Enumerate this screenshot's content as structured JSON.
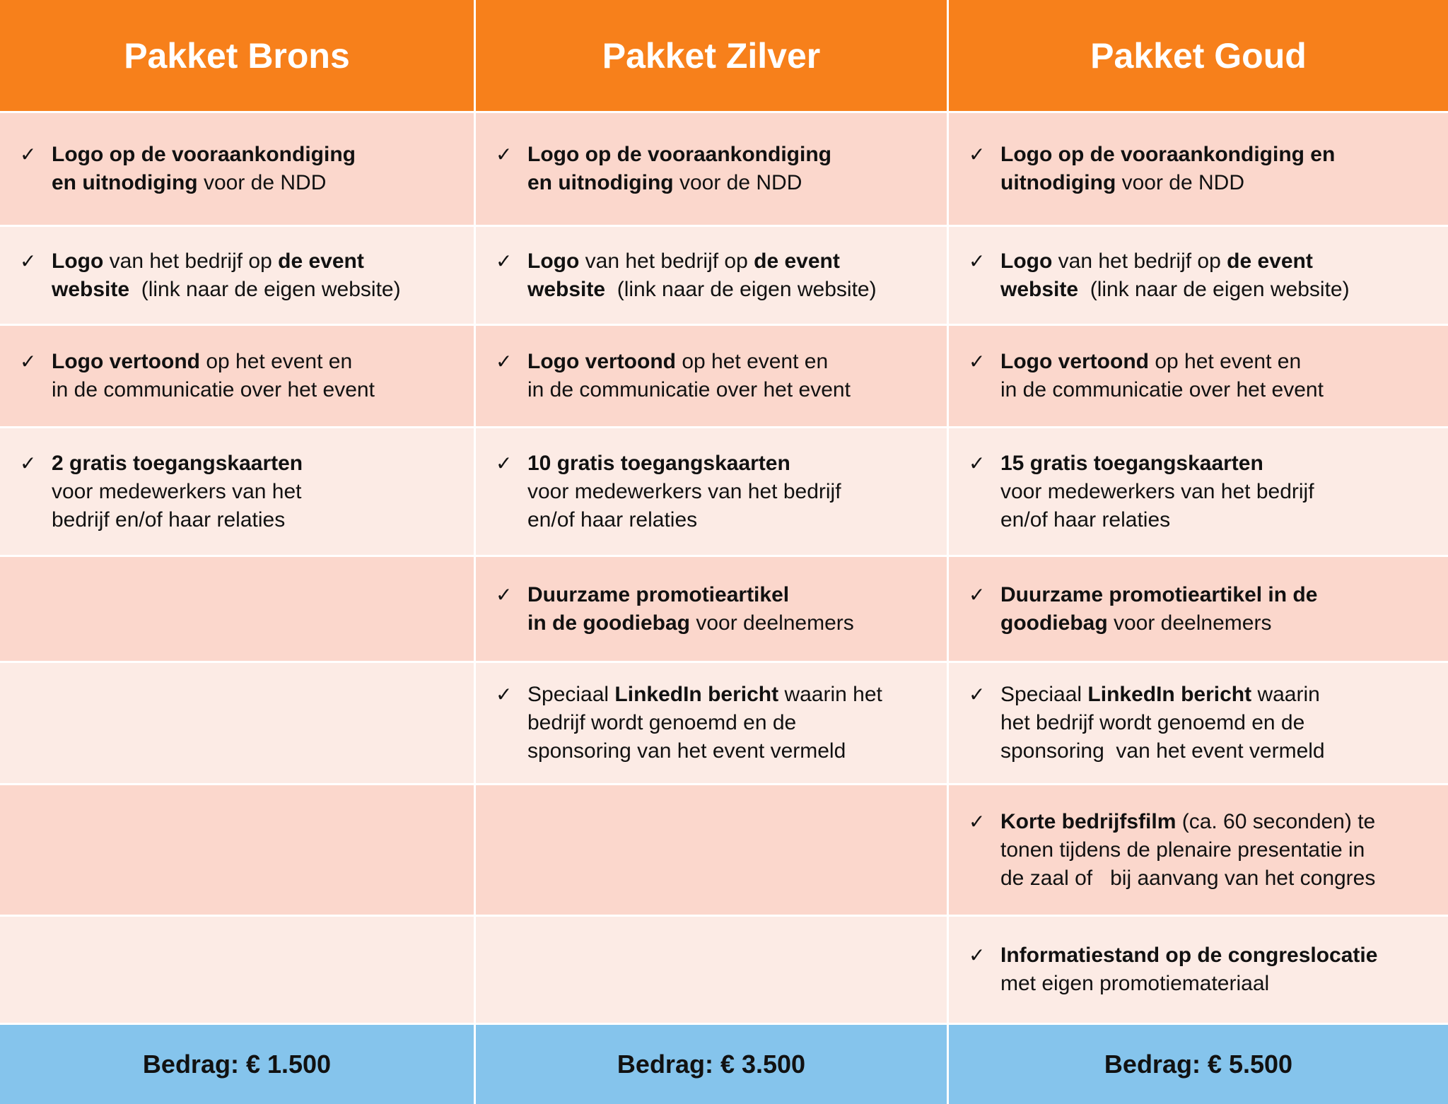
{
  "header": {
    "columns": [
      "Pakket Brons",
      "Pakket Zilver",
      "Pakket Goud"
    ]
  },
  "rows": [
    [
      [
        [
          {
            "text": "Logo op de vooraankondiging",
            "bold": true
          }
        ],
        [
          {
            "text": "en uitnodiging",
            "bold": true
          },
          {
            "text": " voor de NDD"
          }
        ]
      ],
      [
        [
          {
            "text": "Logo op de vooraankondiging",
            "bold": true
          }
        ],
        [
          {
            "text": "en uitnodiging",
            "bold": true
          },
          {
            "text": " voor de NDD"
          }
        ]
      ],
      [
        [
          {
            "text": "Logo op de vooraankondiging en",
            "bold": true
          }
        ],
        [
          {
            "text": "uitnodiging",
            "bold": true
          },
          {
            "text": " voor de NDD"
          }
        ]
      ]
    ],
    [
      [
        [
          {
            "text": "Logo",
            "bold": true
          },
          {
            "text": " van het bedrijf op "
          },
          {
            "text": "de event",
            "bold": true
          }
        ],
        [
          {
            "text": "website",
            "bold": true
          },
          {
            "text": "  (link naar de eigen website)"
          }
        ]
      ],
      [
        [
          {
            "text": "Logo",
            "bold": true
          },
          {
            "text": " van het bedrijf op "
          },
          {
            "text": "de event",
            "bold": true
          }
        ],
        [
          {
            "text": "website",
            "bold": true
          },
          {
            "text": "  (link naar de eigen website)"
          }
        ]
      ],
      [
        [
          {
            "text": "Logo",
            "bold": true
          },
          {
            "text": " van het bedrijf op "
          },
          {
            "text": "de event",
            "bold": true
          }
        ],
        [
          {
            "text": "website",
            "bold": true
          },
          {
            "text": "  (link naar de eigen website)"
          }
        ]
      ]
    ],
    [
      [
        [
          {
            "text": "Logo vertoond",
            "bold": true
          },
          {
            "text": " op het event en"
          }
        ],
        [
          {
            "text": "in de communicatie over het event"
          }
        ]
      ],
      [
        [
          {
            "text": "Logo vertoond",
            "bold": true
          },
          {
            "text": " op het event en"
          }
        ],
        [
          {
            "text": "in de communicatie over het event"
          }
        ]
      ],
      [
        [
          {
            "text": "Logo vertoond",
            "bold": true
          },
          {
            "text": " op het event en"
          }
        ],
        [
          {
            "text": "in de communicatie over het event"
          }
        ]
      ]
    ],
    [
      [
        [
          {
            "text": "2 gratis toegangskaarten",
            "bold": true
          }
        ],
        [
          {
            "text": "voor medewerkers van het"
          }
        ],
        [
          {
            "text": "bedrijf en/of haar relaties"
          }
        ]
      ],
      [
        [
          {
            "text": "10 gratis toegangskaarten",
            "bold": true
          }
        ],
        [
          {
            "text": "voor medewerkers van het bedrijf"
          }
        ],
        [
          {
            "text": "en/of haar relaties"
          }
        ]
      ],
      [
        [
          {
            "text": "15 gratis toegangskaarten",
            "bold": true
          }
        ],
        [
          {
            "text": "voor medewerkers van het bedrijf"
          }
        ],
        [
          {
            "text": "en/of haar relaties"
          }
        ]
      ]
    ],
    [
      [],
      [
        [
          {
            "text": "Duurzame promotieartikel",
            "bold": true
          }
        ],
        [
          {
            "text": "in de goodiebag",
            "bold": true
          },
          {
            "text": " voor deelnemers"
          }
        ]
      ],
      [
        [
          {
            "text": "Duurzame promotieartikel in de",
            "bold": true
          }
        ],
        [
          {
            "text": "goodiebag",
            "bold": true
          },
          {
            "text": " voor deelnemers"
          }
        ]
      ]
    ],
    [
      [],
      [
        [
          {
            "text": "Speciaal "
          },
          {
            "text": "LinkedIn bericht",
            "bold": true
          },
          {
            "text": " waarin het"
          }
        ],
        [
          {
            "text": "bedrijf wordt genoemd en de"
          }
        ],
        [
          {
            "text": "sponsoring van het event vermeld"
          }
        ]
      ],
      [
        [
          {
            "text": "Speciaal "
          },
          {
            "text": "LinkedIn bericht",
            "bold": true
          },
          {
            "text": " waarin"
          }
        ],
        [
          {
            "text": "het bedrijf wordt genoemd en de"
          }
        ],
        [
          {
            "text": "sponsoring  van het event vermeld"
          }
        ]
      ]
    ],
    [
      [],
      [],
      [
        [
          {
            "text": "Korte bedrijfsfilm",
            "bold": true
          },
          {
            "text": " (ca. 60 seconden) te"
          }
        ],
        [
          {
            "text": "tonen tijdens de plenaire presentatie in"
          }
        ],
        [
          {
            "text": "de zaal of   bij aanvang van het congres"
          }
        ]
      ]
    ],
    [
      [],
      [],
      [
        [
          {
            "text": "Informatiestand op de congreslocatie",
            "bold": true
          }
        ],
        [
          {
            "text": "met eigen promotiemateriaal"
          }
        ]
      ]
    ]
  ],
  "footer": {
    "prices": [
      "Bedrag: € 1.500",
      "Bedrag: € 3.500",
      "Bedrag: € 5.500"
    ]
  }
}
